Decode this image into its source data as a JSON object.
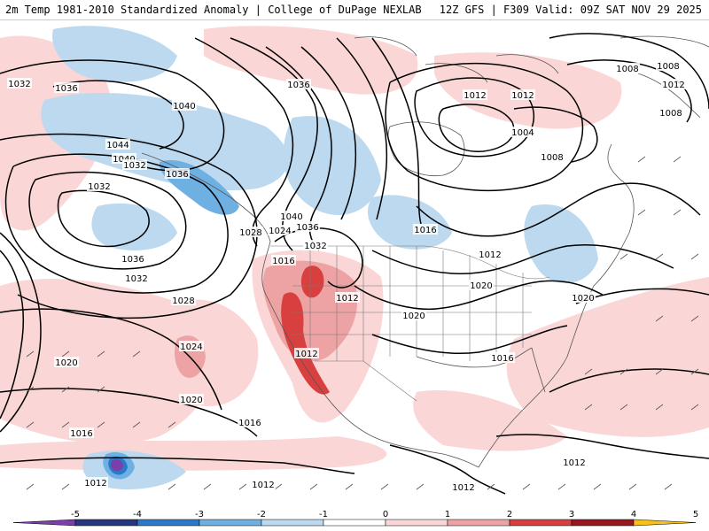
{
  "header": {
    "title": "2m Temp 1981-2010 Standardized Anomaly | College of DuPage NEXLAB",
    "run_info": "12Z GFS | F309 Valid: 09Z SAT NOV 29 2025"
  },
  "colorbar": {
    "ticks": [
      "-5",
      "-4",
      "-3",
      "-2",
      "-1",
      "0",
      "1",
      "2",
      "3",
      "4",
      "5"
    ],
    "colors": [
      "#7b3fa8",
      "#26367f",
      "#2a7ac9",
      "#6fb0e2",
      "#bcd9ef",
      "#ffffff",
      "#fbd6d6",
      "#eda3a3",
      "#d84040",
      "#9a1620",
      "#f7c01a"
    ]
  },
  "isobar_labels": [
    {
      "text": "1032"
    },
    {
      "text": "1036"
    },
    {
      "text": "1040"
    },
    {
      "text": "1044"
    },
    {
      "text": "1040"
    },
    {
      "text": "1032"
    },
    {
      "text": "1036"
    },
    {
      "text": "1032"
    },
    {
      "text": "1036"
    },
    {
      "text": "1032"
    },
    {
      "text": "1028"
    },
    {
      "text": "1024"
    },
    {
      "text": "1020"
    },
    {
      "text": "1020"
    },
    {
      "text": "1016"
    },
    {
      "text": "1016"
    },
    {
      "text": "1012"
    },
    {
      "text": "1036"
    },
    {
      "text": "1040"
    },
    {
      "text": "1036"
    },
    {
      "text": "1028"
    },
    {
      "text": "1024"
    },
    {
      "text": "1032"
    },
    {
      "text": "1016"
    },
    {
      "text": "1012"
    },
    {
      "text": "1020"
    },
    {
      "text": "1012"
    },
    {
      "text": "1016"
    },
    {
      "text": "1012"
    },
    {
      "text": "1012"
    },
    {
      "text": "1008"
    },
    {
      "text": "1004"
    },
    {
      "text": "1008"
    },
    {
      "text": "1016"
    },
    {
      "text": "1012"
    },
    {
      "text": "1020"
    },
    {
      "text": "1020"
    },
    {
      "text": "1008"
    },
    {
      "text": "1012"
    },
    {
      "text": "1008"
    },
    {
      "text": "1012"
    },
    {
      "text": "1012"
    },
    {
      "text": "1012"
    }
  ]
}
